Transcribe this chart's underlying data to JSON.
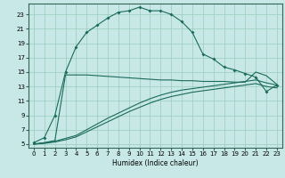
{
  "xlabel": "Humidex (Indice chaleur)",
  "bg_color": "#c8e8e8",
  "grid_color": "#99ccbb",
  "line_color": "#1a6b5a",
  "xlim": [
    -0.5,
    23.5
  ],
  "ylim": [
    4.5,
    24.5
  ],
  "xticks": [
    0,
    1,
    2,
    3,
    4,
    5,
    6,
    7,
    8,
    9,
    10,
    11,
    12,
    13,
    14,
    15,
    16,
    17,
    18,
    19,
    20,
    21,
    22,
    23
  ],
  "yticks": [
    5,
    7,
    9,
    11,
    13,
    15,
    17,
    19,
    21,
    23
  ],
  "curve1_x": [
    0,
    1,
    2,
    3,
    4,
    5,
    6,
    7,
    8,
    9,
    10,
    11,
    12,
    13,
    14,
    15,
    16,
    17,
    18,
    19,
    20,
    21,
    22,
    23
  ],
  "curve1_y": [
    5.2,
    5.9,
    9.0,
    15.0,
    18.5,
    20.5,
    21.5,
    22.5,
    23.3,
    23.5,
    24.0,
    23.5,
    23.5,
    23.0,
    22.0,
    20.5,
    17.5,
    16.8,
    15.7,
    15.3,
    14.8,
    14.3,
    12.3,
    13.2
  ],
  "curve2_x": [
    0,
    1,
    2,
    3,
    4,
    5,
    6,
    7,
    8,
    9,
    10,
    11,
    12,
    13,
    14,
    15,
    16,
    17,
    18,
    19,
    20,
    21,
    22,
    23
  ],
  "curve2_y": [
    5.0,
    5.2,
    5.5,
    14.6,
    14.6,
    14.6,
    14.5,
    14.4,
    14.3,
    14.2,
    14.1,
    14.0,
    13.9,
    13.9,
    13.8,
    13.8,
    13.7,
    13.7,
    13.7,
    13.6,
    13.6,
    15.0,
    14.5,
    13.3
  ],
  "curve3_x": [
    0,
    1,
    2,
    3,
    4,
    5,
    6,
    7,
    8,
    9,
    10,
    11,
    12,
    13,
    14,
    15,
    16,
    17,
    18,
    19,
    20,
    21,
    22,
    23
  ],
  "curve3_y": [
    5.0,
    5.2,
    5.4,
    5.8,
    6.2,
    7.0,
    7.8,
    8.6,
    9.3,
    10.0,
    10.7,
    11.3,
    11.8,
    12.2,
    12.5,
    12.7,
    12.9,
    13.1,
    13.3,
    13.5,
    13.7,
    13.9,
    13.5,
    13.2
  ],
  "curve4_x": [
    0,
    1,
    2,
    3,
    4,
    5,
    6,
    7,
    8,
    9,
    10,
    11,
    12,
    13,
    14,
    15,
    16,
    17,
    18,
    19,
    20,
    21,
    22,
    23
  ],
  "curve4_y": [
    5.0,
    5.1,
    5.3,
    5.6,
    6.0,
    6.7,
    7.4,
    8.1,
    8.8,
    9.5,
    10.1,
    10.7,
    11.2,
    11.6,
    11.9,
    12.2,
    12.4,
    12.6,
    12.8,
    13.0,
    13.2,
    13.4,
    13.0,
    12.8
  ]
}
